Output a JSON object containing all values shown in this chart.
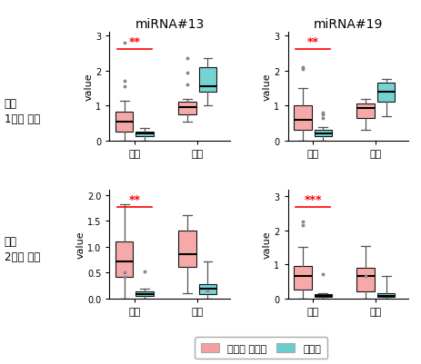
{
  "title_left": "miRNA#13",
  "title_right": "miRNA#19",
  "row_labels": [
    "통증\n1단계 검증",
    "통증\n2단계 검증"
  ],
  "xlabel_groups": [
    "여성",
    "남성"
  ],
  "ylabel": "value",
  "color_control": "#F4A0A0",
  "color_pain": "#68CECE",
  "legend_labels": [
    "대조군 건강인",
    "통증군"
  ],
  "sig_labels": {
    "top_left": "**",
    "top_right": "**",
    "bot_left": "**",
    "bot_right": "***"
  },
  "boxes": {
    "top_left": {
      "female_control": {
        "q1": 0.25,
        "median": 0.55,
        "q3": 0.82,
        "whislo": 0.0,
        "whishi": 1.15,
        "fliers": [
          2.8,
          1.7,
          1.55
        ]
      },
      "female_pain": {
        "q1": 0.13,
        "median": 0.2,
        "q3": 0.27,
        "whislo": 0.0,
        "whishi": 0.35,
        "fliers": []
      },
      "male_control": {
        "q1": 0.75,
        "median": 0.95,
        "q3": 1.12,
        "whislo": 0.55,
        "whishi": 1.2,
        "fliers": [
          2.35,
          1.95,
          1.6
        ]
      },
      "male_pain": {
        "q1": 1.4,
        "median": 1.55,
        "q3": 2.1,
        "whislo": 1.0,
        "whishi": 2.35,
        "fliers": []
      },
      "ylim": [
        0,
        3.1
      ],
      "yticks": [
        0,
        1,
        2,
        3
      ]
    },
    "top_right": {
      "female_control": {
        "q1": 0.32,
        "median": 0.6,
        "q3": 1.02,
        "whislo": 0.0,
        "whishi": 1.5,
        "fliers": [
          2.1,
          2.05
        ]
      },
      "female_pain": {
        "q1": 0.12,
        "median": 0.2,
        "q3": 0.3,
        "whislo": 0.0,
        "whishi": 0.38,
        "fliers": [
          0.65,
          0.75,
          0.8
        ]
      },
      "male_control": {
        "q1": 0.65,
        "median": 0.92,
        "q3": 1.05,
        "whislo": 0.3,
        "whishi": 1.2,
        "fliers": []
      },
      "male_pain": {
        "q1": 1.1,
        "median": 1.4,
        "q3": 1.65,
        "whislo": 0.7,
        "whishi": 1.75,
        "fliers": []
      },
      "ylim": [
        0,
        3.1
      ],
      "yticks": [
        0,
        1,
        2,
        3
      ]
    },
    "bot_left": {
      "female_control": {
        "q1": 0.42,
        "median": 0.72,
        "q3": 1.1,
        "whislo": 0.0,
        "whishi": 1.82,
        "fliers": [
          0.5,
          0.42
        ]
      },
      "female_pain": {
        "q1": 0.04,
        "median": 0.08,
        "q3": 0.13,
        "whislo": 0.0,
        "whishi": 0.18,
        "fliers": [
          0.52
        ]
      },
      "male_control": {
        "q1": 0.6,
        "median": 0.85,
        "q3": 1.3,
        "whislo": 0.1,
        "whishi": 1.6,
        "fliers": []
      },
      "male_pain": {
        "q1": 0.08,
        "median": 0.18,
        "q3": 0.27,
        "whislo": 0.0,
        "whishi": 0.72,
        "fliers": [
          0.15
        ]
      },
      "ylim": [
        0,
        2.1
      ],
      "yticks": [
        0.0,
        0.5,
        1.0,
        1.5,
        2.0
      ]
    },
    "bot_right": {
      "female_control": {
        "q1": 0.25,
        "median": 0.65,
        "q3": 0.95,
        "whislo": 0.0,
        "whishi": 1.5,
        "fliers": [
          2.25,
          2.15
        ]
      },
      "female_pain": {
        "q1": 0.04,
        "median": 0.07,
        "q3": 0.12,
        "whislo": 0.0,
        "whishi": 0.15,
        "fliers": [
          0.72
        ]
      },
      "male_control": {
        "q1": 0.2,
        "median": 0.65,
        "q3": 0.9,
        "whislo": 0.0,
        "whishi": 1.55,
        "fliers": [
          0.65
        ]
      },
      "male_pain": {
        "q1": 0.04,
        "median": 0.07,
        "q3": 0.15,
        "whislo": 0.0,
        "whishi": 0.65,
        "fliers": []
      },
      "ylim": [
        0,
        3.2
      ],
      "yticks": [
        0,
        1,
        2,
        3
      ]
    }
  },
  "background": "#FFFFFF"
}
